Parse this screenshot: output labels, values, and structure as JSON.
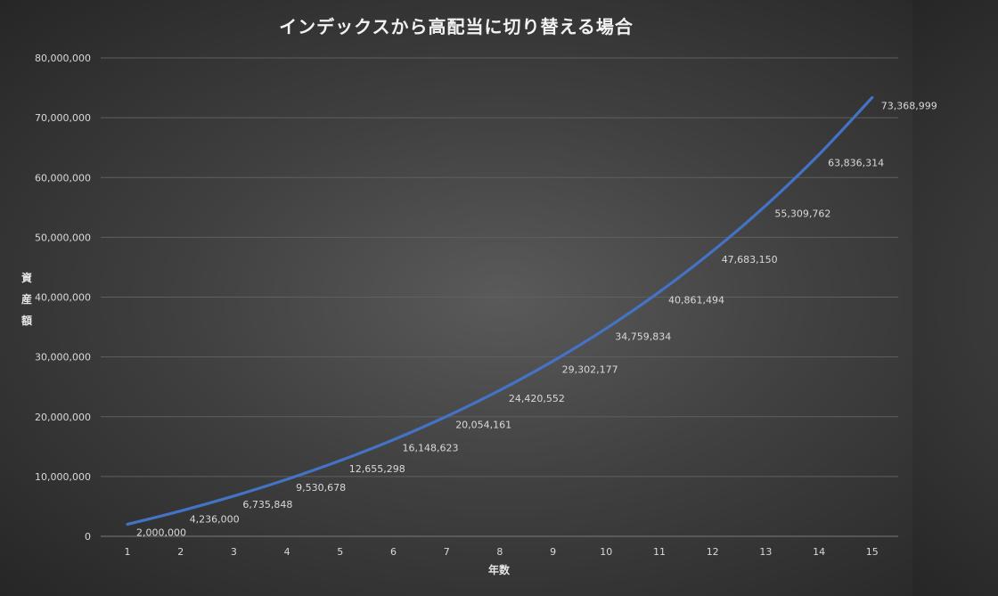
{
  "chart_data": {
    "type": "line",
    "title": "インデックスから高配当に切り替える場合",
    "xlabel": "年数",
    "ylabel": "資産額",
    "x": [
      1,
      2,
      3,
      4,
      5,
      6,
      7,
      8,
      9,
      10,
      11,
      12,
      13,
      14,
      15
    ],
    "series": [
      {
        "values": [
          2000000,
          4236000,
          6735848,
          9530678,
          12655298,
          16148623,
          20054161,
          24420552,
          29302177,
          34759834,
          40861494,
          47683150,
          55309762,
          63836314,
          73368999
        ],
        "data_labels": [
          "2,000,000",
          "4,236,000",
          "6,735,848",
          "9,530,678",
          "12,655,298",
          "16,148,623",
          "20,054,161",
          "24,420,552",
          "29,302,177",
          "34,759,834",
          "40,861,494",
          "47,683,150",
          "55,309,762",
          "63,836,314",
          "73,368,999"
        ]
      }
    ],
    "ylim": [
      0,
      80000000
    ],
    "y_ticks": [
      0,
      10000000,
      20000000,
      30000000,
      40000000,
      50000000,
      60000000,
      70000000,
      80000000
    ],
    "y_tick_labels": [
      "0",
      "10,000,000",
      "20,000,000",
      "30,000,000",
      "40,000,000",
      "50,000,000",
      "60,000,000",
      "70,000,000",
      "80,000,000"
    ],
    "x_tick_labels": [
      "1",
      "2",
      "3",
      "4",
      "5",
      "6",
      "7",
      "8",
      "9",
      "10",
      "11",
      "12",
      "13",
      "14",
      "15"
    ],
    "grid": true,
    "legend": "none",
    "colors": {
      "line": "#4472c4",
      "text": "#d9d9d9",
      "grid": "#5f5f5f"
    }
  }
}
